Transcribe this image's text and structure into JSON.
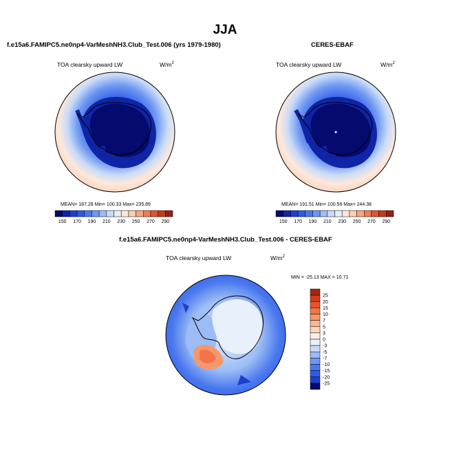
{
  "page": {
    "season": "JJA",
    "top_left": {
      "title": "f.e15a6.FAMIPC5.ne0np4-VarMeshNH3.Club_Test.006 (yrs 1979-1980)",
      "variable": "TOA clearsky upward LW",
      "units": "W/m",
      "units_exp": "2",
      "stats": "MEAN= 187.28  Min= 100.33  Max= 235.89"
    },
    "top_right": {
      "title": "CERES-EBAF",
      "variable": "TOA clearsky upward LW",
      "units": "W/m",
      "units_exp": "2",
      "stats": "MEAN= 191.51  Min= 100.56  Max= 244.38"
    },
    "bottom": {
      "title": "f.e15a6.FAMIPC5.ne0np4-VarMeshNH3.Club_Test.006 - CERES-EBAF",
      "variable": "TOA clearsky upward LW",
      "units": "W/m",
      "units_exp": "2",
      "stats": "MIN = -25.13 MAX =  10.71"
    },
    "colorbar_top": {
      "labels": [
        "150",
        "170",
        "190",
        "210",
        "230",
        "250",
        "270",
        "290"
      ],
      "colors": [
        "#050a6e",
        "#0f24a6",
        "#1f3fd0",
        "#2e5ae6",
        "#4a78ef",
        "#6f98f2",
        "#9bbcf5",
        "#c8dbf8",
        "#e6eefb",
        "#fde8dc",
        "#fbcdb2",
        "#f6a57f",
        "#f07c57",
        "#e4532f",
        "#c53a1c",
        "#9a1f0d"
      ]
    },
    "colorbar_diff": {
      "labels": [
        "25",
        "20",
        "15",
        "10",
        "7",
        "5",
        "3",
        "0",
        "-3",
        "-5",
        "-7",
        "-10",
        "-15",
        "-20",
        "-25"
      ],
      "colors": [
        "#a5260f",
        "#d33b1b",
        "#e8542c",
        "#f27448",
        "#f6976a",
        "#f9b690",
        "#fcd4bb",
        "#fdefe6",
        "#e8f0fb",
        "#c8dbf8",
        "#9bbcf5",
        "#6f98f2",
        "#4a78ef",
        "#2e5ae6",
        "#1f3fd0",
        "#050a6e"
      ]
    }
  }
}
